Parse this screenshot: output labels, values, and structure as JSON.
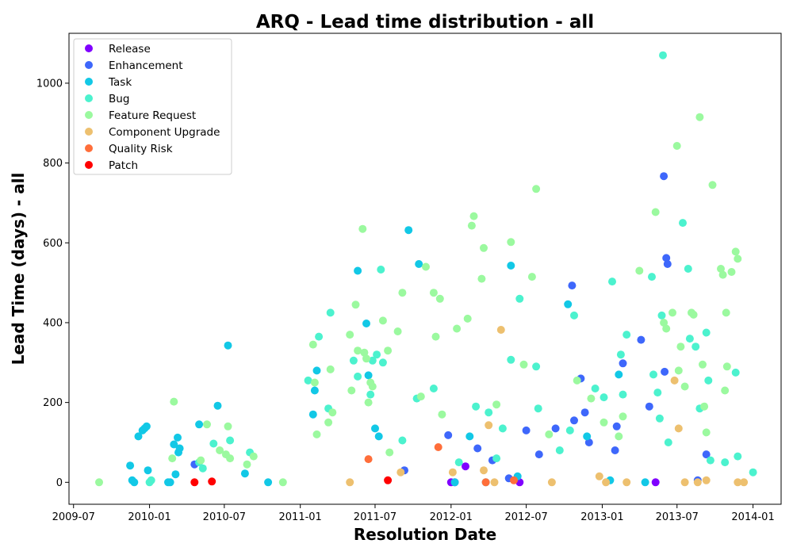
{
  "chart_data": {
    "type": "scatter",
    "title": "ARQ - Lead time distribution - all",
    "xlabel": "Resolution Date",
    "ylabel": "Lead Time (days) - all",
    "x_axis": "date",
    "xlim": [
      "2009-06-20",
      "2014-03-10"
    ],
    "ylim": [
      -55,
      1125
    ],
    "xticks": [
      {
        "date": "2009-07-01",
        "label": "2009-07"
      },
      {
        "date": "2010-01-01",
        "label": "2010-01"
      },
      {
        "date": "2010-07-01",
        "label": "2010-07"
      },
      {
        "date": "2011-01-01",
        "label": "2011-01"
      },
      {
        "date": "2011-07-01",
        "label": "2011-07"
      },
      {
        "date": "2012-01-01",
        "label": "2012-01"
      },
      {
        "date": "2012-07-01",
        "label": "2012-07"
      },
      {
        "date": "2013-01-01",
        "label": "2013-01"
      },
      {
        "date": "2013-07-01",
        "label": "2013-07"
      },
      {
        "date": "2014-01-01",
        "label": "2014-01"
      }
    ],
    "yticks": [
      0,
      200,
      400,
      600,
      800,
      1000
    ],
    "grid": false,
    "legend_position": "top-left",
    "series": [
      {
        "name": "Release",
        "color": "#8000ff",
        "points": [
          [
            "2012-01-01",
            0
          ],
          [
            "2012-01-10",
            0
          ],
          [
            "2012-02-05",
            40
          ],
          [
            "2012-06-15",
            0
          ],
          [
            "2013-05-10",
            0
          ]
        ]
      },
      {
        "name": "Enhancement",
        "color": "#3e67fb",
        "points": [
          [
            "2010-04-20",
            45
          ],
          [
            "2011-09-10",
            30
          ],
          [
            "2011-12-25",
            118
          ],
          [
            "2012-03-05",
            85
          ],
          [
            "2012-04-10",
            55
          ],
          [
            "2012-07-01",
            130
          ],
          [
            "2012-08-01",
            70
          ],
          [
            "2012-09-10",
            135
          ],
          [
            "2012-10-20",
            493
          ],
          [
            "2012-10-25",
            155
          ],
          [
            "2012-11-10",
            260
          ],
          [
            "2012-11-20",
            175
          ],
          [
            "2012-11-30",
            100
          ],
          [
            "2013-02-01",
            80
          ],
          [
            "2013-02-05",
            140
          ],
          [
            "2013-02-20",
            298
          ],
          [
            "2013-04-05",
            357
          ],
          [
            "2013-04-25",
            190
          ],
          [
            "2013-05-30",
            767
          ],
          [
            "2013-06-05",
            562
          ],
          [
            "2013-06-08",
            547
          ],
          [
            "2013-06-01",
            277
          ],
          [
            "2013-09-10",
            70
          ],
          [
            "2013-08-20",
            5
          ],
          [
            "2012-05-20",
            10
          ]
        ]
      },
      {
        "name": "Task",
        "color": "#12c8e6",
        "points": [
          [
            "2009-11-15",
            42
          ],
          [
            "2009-11-20",
            5
          ],
          [
            "2009-11-25",
            0
          ],
          [
            "2009-12-05",
            115
          ],
          [
            "2009-12-15",
            130
          ],
          [
            "2009-12-20",
            135
          ],
          [
            "2009-12-25",
            140
          ],
          [
            "2009-12-28",
            30
          ],
          [
            "2010-02-15",
            0
          ],
          [
            "2010-02-20",
            0
          ],
          [
            "2010-03-01",
            95
          ],
          [
            "2010-03-05",
            20
          ],
          [
            "2010-03-10",
            112
          ],
          [
            "2010-03-12",
            75
          ],
          [
            "2010-03-15",
            85
          ],
          [
            "2010-05-01",
            145
          ],
          [
            "2010-06-15",
            192
          ],
          [
            "2010-07-10",
            343
          ],
          [
            "2010-08-20",
            22
          ],
          [
            "2010-10-15",
            0
          ],
          [
            "2011-02-01",
            170
          ],
          [
            "2011-02-05",
            230
          ],
          [
            "2011-02-10",
            280
          ],
          [
            "2011-05-20",
            530
          ],
          [
            "2011-06-10",
            398
          ],
          [
            "2011-06-15",
            268
          ],
          [
            "2011-07-01",
            135
          ],
          [
            "2011-07-10",
            115
          ],
          [
            "2011-09-20",
            632
          ],
          [
            "2011-10-15",
            547
          ],
          [
            "2012-01-10",
            0
          ],
          [
            "2012-02-15",
            115
          ],
          [
            "2012-03-25",
            0
          ],
          [
            "2012-05-25",
            543
          ],
          [
            "2012-06-10",
            15
          ],
          [
            "2012-10-10",
            446
          ],
          [
            "2012-11-25",
            115
          ],
          [
            "2013-01-20",
            5
          ],
          [
            "2013-02-10",
            270
          ],
          [
            "2013-04-15",
            0
          ]
        ]
      },
      {
        "name": "Bug",
        "color": "#4cf2ce",
        "points": [
          [
            "2010-01-01",
            0
          ],
          [
            "2010-01-05",
            5
          ],
          [
            "2010-05-01",
            50
          ],
          [
            "2010-05-10",
            35
          ],
          [
            "2010-06-05",
            97
          ],
          [
            "2010-07-15",
            105
          ],
          [
            "2010-09-01",
            75
          ],
          [
            "2011-01-20",
            255
          ],
          [
            "2011-02-15",
            365
          ],
          [
            "2011-03-10",
            185
          ],
          [
            "2011-03-15",
            425
          ],
          [
            "2011-05-10",
            305
          ],
          [
            "2011-05-20",
            265
          ],
          [
            "2011-06-20",
            220
          ],
          [
            "2011-06-25",
            305
          ],
          [
            "2011-07-05",
            320
          ],
          [
            "2011-07-15",
            533
          ],
          [
            "2011-07-20",
            300
          ],
          [
            "2011-09-05",
            105
          ],
          [
            "2011-10-10",
            210
          ],
          [
            "2011-11-20",
            235
          ],
          [
            "2012-01-20",
            50
          ],
          [
            "2012-03-01",
            190
          ],
          [
            "2012-04-01",
            175
          ],
          [
            "2012-04-20",
            60
          ],
          [
            "2012-05-05",
            135
          ],
          [
            "2012-05-25",
            307
          ],
          [
            "2012-06-15",
            460
          ],
          [
            "2012-07-25",
            290
          ],
          [
            "2012-07-30",
            185
          ],
          [
            "2012-09-20",
            80
          ],
          [
            "2012-10-15",
            130
          ],
          [
            "2012-10-25",
            418
          ],
          [
            "2012-12-15",
            235
          ],
          [
            "2013-01-05",
            213
          ],
          [
            "2013-01-25",
            503
          ],
          [
            "2013-02-15",
            320
          ],
          [
            "2013-02-20",
            220
          ],
          [
            "2013-03-01",
            370
          ],
          [
            "2013-05-01",
            515
          ],
          [
            "2013-05-05",
            270
          ],
          [
            "2013-05-15",
            225
          ],
          [
            "2013-05-20",
            160
          ],
          [
            "2013-05-25",
            418
          ],
          [
            "2013-05-28",
            1070
          ],
          [
            "2013-06-10",
            100
          ],
          [
            "2013-07-15",
            650
          ],
          [
            "2013-07-28",
            535
          ],
          [
            "2013-08-01",
            360
          ],
          [
            "2013-08-15",
            340
          ],
          [
            "2013-08-25",
            185
          ],
          [
            "2013-09-10",
            375
          ],
          [
            "2013-09-15",
            255
          ],
          [
            "2013-09-20",
            55
          ],
          [
            "2013-10-25",
            50
          ],
          [
            "2013-11-20",
            275
          ],
          [
            "2013-11-25",
            65
          ],
          [
            "2014-01-01",
            25
          ]
        ]
      },
      {
        "name": "Feature Request",
        "color": "#9bf99f",
        "points": [
          [
            "2009-09-01",
            0
          ],
          [
            "2010-03-01",
            202
          ],
          [
            "2010-02-25",
            60
          ],
          [
            "2010-05-05",
            55
          ],
          [
            "2010-05-20",
            145
          ],
          [
            "2010-06-20",
            80
          ],
          [
            "2010-07-05",
            70
          ],
          [
            "2010-07-10",
            140
          ],
          [
            "2010-07-15",
            60
          ],
          [
            "2010-08-25",
            45
          ],
          [
            "2010-09-10",
            65
          ],
          [
            "2010-11-20",
            0
          ],
          [
            "2011-02-01",
            345
          ],
          [
            "2011-02-05",
            250
          ],
          [
            "2011-02-10",
            120
          ],
          [
            "2011-03-15",
            283
          ],
          [
            "2011-03-20",
            175
          ],
          [
            "2011-03-10",
            150
          ],
          [
            "2011-05-01",
            370
          ],
          [
            "2011-05-05",
            230
          ],
          [
            "2011-05-15",
            445
          ],
          [
            "2011-05-20",
            330
          ],
          [
            "2011-06-01",
            635
          ],
          [
            "2011-06-05",
            325
          ],
          [
            "2011-06-10",
            310
          ],
          [
            "2011-06-20",
            250
          ],
          [
            "2011-06-25",
            240
          ],
          [
            "2011-06-15",
            200
          ],
          [
            "2011-07-20",
            405
          ],
          [
            "2011-08-01",
            330
          ],
          [
            "2011-08-05",
            75
          ],
          [
            "2011-08-25",
            378
          ],
          [
            "2011-09-05",
            475
          ],
          [
            "2011-10-20",
            215
          ],
          [
            "2011-11-01",
            540
          ],
          [
            "2011-11-20",
            475
          ],
          [
            "2011-11-25",
            365
          ],
          [
            "2011-12-05",
            460
          ],
          [
            "2011-12-10",
            170
          ],
          [
            "2012-01-15",
            385
          ],
          [
            "2012-02-10",
            410
          ],
          [
            "2012-02-20",
            643
          ],
          [
            "2012-02-25",
            667
          ],
          [
            "2012-03-15",
            510
          ],
          [
            "2012-03-20",
            587
          ],
          [
            "2012-04-20",
            195
          ],
          [
            "2012-05-25",
            602
          ],
          [
            "2012-06-25",
            295
          ],
          [
            "2012-07-15",
            515
          ],
          [
            "2012-07-25",
            735
          ],
          [
            "2012-08-25",
            120
          ],
          [
            "2012-11-01",
            255
          ],
          [
            "2012-12-05",
            210
          ],
          [
            "2013-01-05",
            150
          ],
          [
            "2013-02-10",
            115
          ],
          [
            "2013-02-20",
            165
          ],
          [
            "2013-04-01",
            530
          ],
          [
            "2013-05-10",
            677
          ],
          [
            "2013-05-30",
            400
          ],
          [
            "2013-06-05",
            385
          ],
          [
            "2013-06-20",
            425
          ],
          [
            "2013-07-01",
            843
          ],
          [
            "2013-07-05",
            280
          ],
          [
            "2013-07-10",
            340
          ],
          [
            "2013-07-20",
            240
          ],
          [
            "2013-08-05",
            425
          ],
          [
            "2013-08-10",
            420
          ],
          [
            "2013-08-25",
            915
          ],
          [
            "2013-09-01",
            295
          ],
          [
            "2013-09-05",
            190
          ],
          [
            "2013-09-10",
            125
          ],
          [
            "2013-09-25",
            745
          ],
          [
            "2013-10-15",
            535
          ],
          [
            "2013-10-20",
            520
          ],
          [
            "2013-10-25",
            230
          ],
          [
            "2013-10-28",
            425
          ],
          [
            "2013-10-30",
            290
          ],
          [
            "2013-11-10",
            527
          ],
          [
            "2013-11-20",
            578
          ],
          [
            "2013-11-25",
            560
          ]
        ]
      },
      {
        "name": "Component  Upgrade",
        "color": "#edc06f",
        "points": [
          [
            "2011-05-01",
            0
          ],
          [
            "2011-09-01",
            25
          ],
          [
            "2012-01-05",
            25
          ],
          [
            "2012-03-20",
            30
          ],
          [
            "2012-04-01",
            143
          ],
          [
            "2012-04-15",
            0
          ],
          [
            "2012-05-01",
            382
          ],
          [
            "2012-09-01",
            0
          ],
          [
            "2012-12-25",
            15
          ],
          [
            "2013-01-10",
            0
          ],
          [
            "2013-03-01",
            0
          ],
          [
            "2013-06-25",
            255
          ],
          [
            "2013-07-05",
            135
          ],
          [
            "2013-07-20",
            0
          ],
          [
            "2013-08-20",
            0
          ],
          [
            "2013-09-10",
            5
          ],
          [
            "2013-11-25",
            0
          ],
          [
            "2013-12-10",
            0
          ]
        ]
      },
      {
        "name": "Quality Risk",
        "color": "#ff6e3a",
        "points": [
          [
            "2011-06-15",
            58
          ],
          [
            "2011-12-01",
            88
          ],
          [
            "2012-03-25",
            0
          ],
          [
            "2012-06-01",
            5
          ]
        ]
      },
      {
        "name": "Patch",
        "color": "#ff0000",
        "points": [
          [
            "2010-04-20",
            0
          ],
          [
            "2010-06-01",
            2
          ],
          [
            "2011-08-01",
            5
          ]
        ]
      }
    ]
  }
}
